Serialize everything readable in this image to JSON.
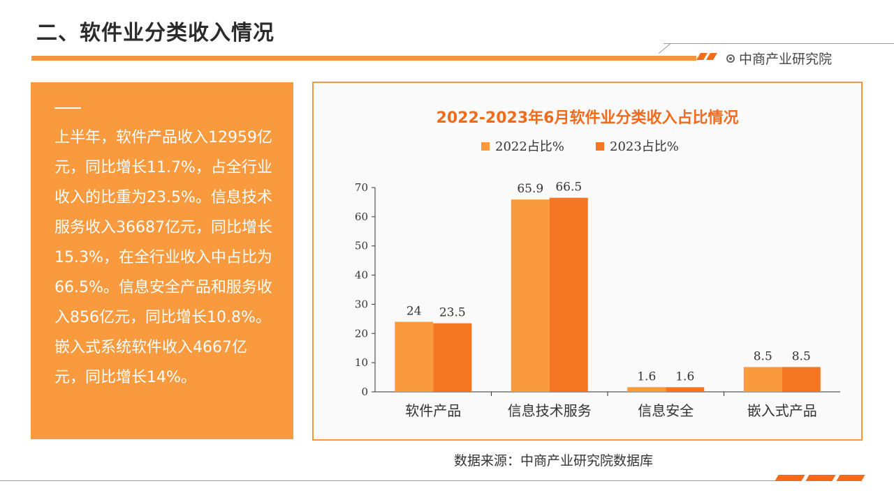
{
  "page": {
    "title": "二、软件业分类收入情况",
    "brand": "中商产业研究院",
    "source": "数据来源：中商产业研究院数据库"
  },
  "summary": {
    "text": "上半年，软件产品收入12959亿元，同比增长11.7%，占全行业收入的比重为23.5%。信息技术服务收入36687亿元，同比增长15.3%，在全行业收入中占比为66.5%。信息安全产品和服务收入856亿元，同比增长10.8%。嵌入式系统软件收入4667亿元，同比增长14%。"
  },
  "colors": {
    "accent": "#f7963b",
    "series_2022": "#f99a3e",
    "series_2023": "#f47622",
    "title_text": "#f26b1d"
  },
  "chart_data": {
    "type": "bar",
    "title": "2022-2023年6月软件业分类收入占比情况",
    "categories": [
      "软件产品",
      "信息技术服务",
      "信息安全",
      "嵌入式产品"
    ],
    "series": [
      {
        "name": "2022占比%",
        "values": [
          24,
          65.9,
          1.6,
          8.5
        ]
      },
      {
        "name": "2023占比%",
        "values": [
          23.5,
          66.5,
          1.6,
          8.5
        ]
      }
    ],
    "data_labels": [
      [
        "24",
        "65.9",
        "1.6",
        "8.5"
      ],
      [
        "23.5",
        "66.5",
        "1.6",
        "8.5"
      ]
    ],
    "yticks": [
      "0",
      "10",
      "20",
      "30",
      "40",
      "50",
      "60",
      "70"
    ],
    "ylim": [
      0,
      70
    ],
    "legend": "top",
    "grid": false
  }
}
